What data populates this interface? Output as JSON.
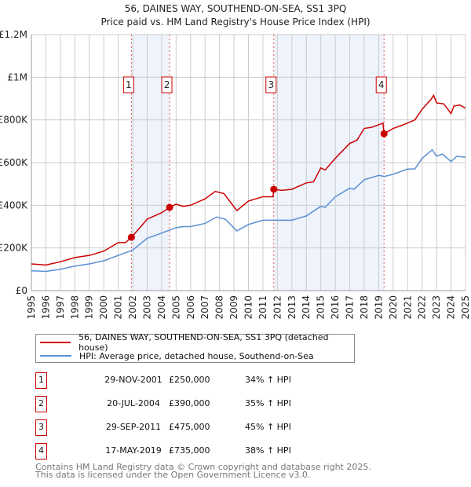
{
  "chart_data": {
    "type": "line",
    "title": "56, DAINES WAY, SOUTHEND-ON-SEA, SS1 3PQ",
    "subtitle": "Price paid vs. HM Land Registry's House Price Index (HPI)",
    "xlim": [
      1995,
      2025
    ],
    "ylim": [
      0,
      1200000
    ],
    "y_ticks": [
      {
        "v": 0,
        "label": "£0"
      },
      {
        "v": 200000,
        "label": "£200K"
      },
      {
        "v": 400000,
        "label": "£400K"
      },
      {
        "v": 600000,
        "label": "£600K"
      },
      {
        "v": 800000,
        "label": "£800K"
      },
      {
        "v": 1000000,
        "label": "£1M"
      },
      {
        "v": 1200000,
        "label": "£1.2M"
      }
    ],
    "x_ticks": [
      "1995",
      "1996",
      "1997",
      "1998",
      "1999",
      "2000",
      "2001",
      "2002",
      "2003",
      "2004",
      "2005",
      "2006",
      "2007",
      "2008",
      "2009",
      "2010",
      "2011",
      "2012",
      "2013",
      "2014",
      "2015",
      "2016",
      "2017",
      "2018",
      "2019",
      "2020",
      "2021",
      "2022",
      "2023",
      "2024",
      "2025"
    ],
    "grid": true,
    "series": [
      {
        "name": "56, DAINES WAY, SOUTHEND-ON-SEA, SS1 3PQ (detached house)",
        "color": "#cc0000",
        "x": [
          1995,
          1996,
          1997,
          1998,
          1999,
          2000,
          2001,
          2001.5,
          2001.91,
          2002.5,
          2003,
          2004,
          2004.55,
          2005,
          2005.5,
          2006,
          2007,
          2007.7,
          2008.3,
          2009.2,
          2010,
          2011,
          2011.7,
          2011.75,
          2012.3,
          2013,
          2014,
          2014.5,
          2015,
          2015.3,
          2016,
          2017,
          2017.5,
          2018,
          2018.5,
          2019.3,
          2019.37,
          2020,
          2021,
          2021.5,
          2022,
          2022.6,
          2022.8,
          2023,
          2023.5,
          2024,
          2024.2,
          2024.6,
          2025
        ],
        "y": [
          125000,
          120000,
          135000,
          155000,
          165000,
          185000,
          225000,
          225000,
          250000,
          295000,
          335000,
          365000,
          390000,
          405000,
          395000,
          400000,
          430000,
          465000,
          455000,
          375000,
          420000,
          440000,
          440000,
          475000,
          470000,
          475000,
          505000,
          510000,
          575000,
          565000,
          620000,
          690000,
          705000,
          760000,
          765000,
          785000,
          735000,
          760000,
          785000,
          800000,
          850000,
          895000,
          915000,
          880000,
          875000,
          830000,
          865000,
          870000,
          855000
        ]
      },
      {
        "name": "HPI: Average price, detached house, Southend-on-Sea",
        "color": "#5b8fd4",
        "x": [
          1995,
          1996,
          1997,
          1998,
          1999,
          2000,
          2001,
          2002,
          2003,
          2004,
          2005,
          2005.5,
          2006,
          2007,
          2007.8,
          2008.4,
          2009.2,
          2010,
          2011,
          2012,
          2013,
          2014,
          2015,
          2015.3,
          2016,
          2017,
          2017.3,
          2018,
          2019,
          2019.4,
          2020,
          2021,
          2021.5,
          2022,
          2022.7,
          2023,
          2023.4,
          2024,
          2024.4,
          2025
        ],
        "y": [
          93000,
          90000,
          100000,
          115000,
          125000,
          140000,
          165000,
          190000,
          245000,
          270000,
          295000,
          300000,
          300000,
          315000,
          345000,
          335000,
          280000,
          310000,
          330000,
          330000,
          330000,
          350000,
          395000,
          390000,
          440000,
          480000,
          475000,
          520000,
          540000,
          535000,
          545000,
          570000,
          570000,
          620000,
          660000,
          630000,
          640000,
          605000,
          630000,
          625000
        ]
      }
    ],
    "sales": [
      {
        "n": "1",
        "x": 2001.91,
        "price": 250000,
        "date": "29-NOV-2001",
        "price_label": "£250,000",
        "hpi": "34% ↑ HPI"
      },
      {
        "n": "2",
        "x": 2004.55,
        "price": 390000,
        "date": "20-JUL-2004",
        "price_label": "£390,000",
        "hpi": "35% ↑ HPI"
      },
      {
        "n": "3",
        "x": 2011.75,
        "price": 475000,
        "date": "29-SEP-2011",
        "price_label": "£475,000",
        "hpi": "45% ↑ HPI"
      },
      {
        "n": "4",
        "x": 2019.37,
        "price": 735000,
        "date": "17-MAY-2019",
        "price_label": "£735,000",
        "hpi": "38% ↑ HPI"
      }
    ],
    "shaded_ranges": [
      [
        2001.91,
        2004.55
      ],
      [
        2011.75,
        2019.37
      ]
    ]
  },
  "footer": {
    "line1": "Contains HM Land Registry data © Crown copyright and database right 2025.",
    "line2": "This data is licensed under the Open Government Licence v3.0."
  }
}
